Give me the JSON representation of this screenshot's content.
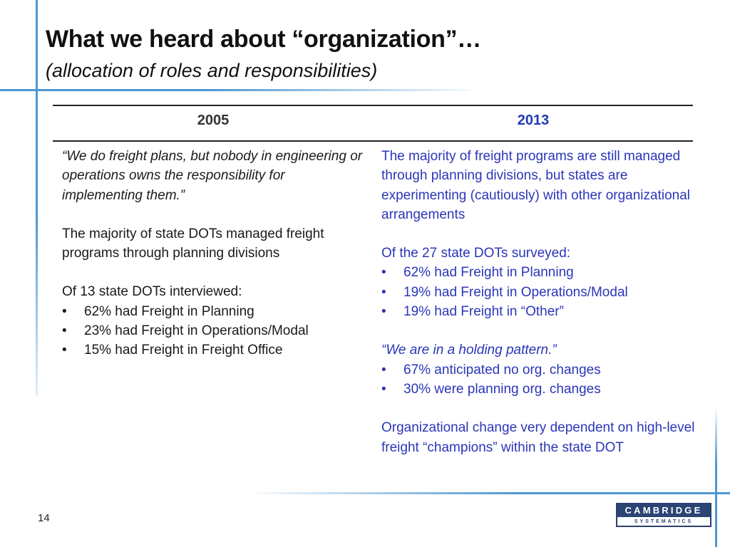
{
  "slide": {
    "title": "What we heard about “organization”…",
    "subtitle": "(allocation of roles and responsibilities)",
    "page_number": "14"
  },
  "table": {
    "headers": [
      "2005",
      "2013"
    ],
    "left": {
      "quote": "“We do freight plans, but nobody in engineering or operations owns the responsibility for implementing them.”",
      "paragraph": "The majority of state DOTs managed freight programs through planning divisions",
      "list_intro": "Of 13 state DOTs interviewed:",
      "bullets": [
        "62% had Freight in Planning",
        "23% had Freight in Operations/Modal",
        "15% had Freight in Freight Office"
      ]
    },
    "right": {
      "paragraph": "The majority of freight programs are still managed through planning divisions, but states are experimenting (cautiously) with other organizational arrangements",
      "list_intro": "Of the 27 state DOTs surveyed:",
      "bullets": [
        "62% had Freight in Planning",
        "19% had Freight in Operations/Modal",
        "19% had Freight in “Other”"
      ],
      "quote": "“We are in a holding pattern.”",
      "bullets2": [
        "67% anticipated no org. changes",
        "30% were planning org. changes"
      ],
      "closing": "Organizational change very dependent on high-level freight “champions” within the state DOT"
    },
    "bullet_glyph": "•"
  },
  "logo": {
    "top": "CAMBRIDGE",
    "bottom": "SYSTEMATICS"
  },
  "colors": {
    "accent_line": "#4e97d1",
    "right_column_text": "#2a36b8",
    "header_2013": "#1f3ab4",
    "logo_navy": "#2a4473"
  }
}
